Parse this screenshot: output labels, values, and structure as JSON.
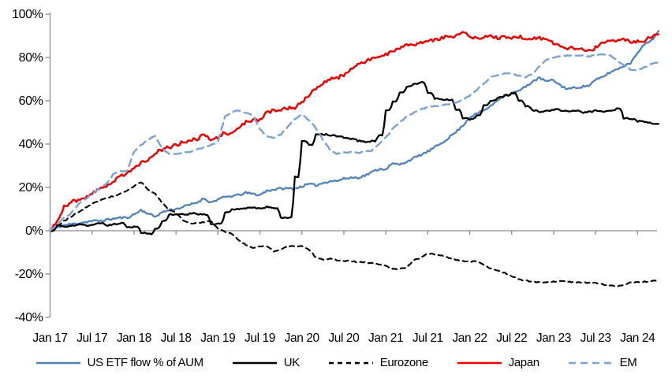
{
  "page": {
    "background": "#ffffff"
  },
  "chart_data": {
    "type": "line",
    "title": "",
    "x_tick_labels": [
      "Jan 17",
      "Jul 17",
      "Jan 18",
      "Jul 18",
      "Jan 19",
      "Jul 19",
      "Jan 20",
      "Jul 20",
      "Jan 21",
      "Jul 21",
      "Jan 22",
      "Jul 22",
      "Jan 23",
      "Jul 23",
      "Jan 24"
    ],
    "x_tick_month_indices": [
      0,
      6,
      12,
      18,
      24,
      30,
      36,
      42,
      48,
      54,
      60,
      66,
      72,
      78,
      84
    ],
    "y_tick_labels": [
      "100%",
      "80%",
      "60%",
      "40%",
      "20%",
      "0%",
      "-20%",
      "-40%"
    ],
    "y_tick_values": [
      100,
      80,
      60,
      40,
      20,
      0,
      -20,
      -40
    ],
    "ylim": [
      -40,
      100
    ],
    "x_months": {
      "start_label": "Jan 17",
      "end_label": "Apr 24",
      "count": 88
    },
    "axis_color": "#8c8c8c",
    "text_color": "#000000",
    "legend_position": "bottom",
    "series": [
      {
        "name": "US ETF flow % of AUM",
        "color": "#4f81bd",
        "dash": "solid",
        "width": 2.3,
        "noise": 0.5,
        "interp": "linear",
        "values": [
          0,
          1.5,
          2.5,
          3,
          3.5,
          4,
          4.5,
          4.5,
          5,
          5.5,
          6,
          6,
          7.5,
          9.5,
          8,
          6.5,
          8.5,
          9.5,
          10,
          11,
          12,
          13,
          15,
          13,
          14.5,
          15.5,
          16,
          16.5,
          17.5,
          17,
          16.5,
          18.5,
          19,
          19.5,
          19.5,
          19.5,
          20.5,
          21.5,
          21,
          22,
          23,
          23,
          24,
          24.5,
          24.5,
          25.5,
          27,
          28.5,
          28.5,
          31,
          30.5,
          32,
          33.5,
          35,
          36.5,
          38.5,
          40.5,
          43,
          45.5,
          48.5,
          52.5,
          54,
          55.5,
          57.5,
          60.5,
          62.5,
          63.5,
          64.5,
          66.5,
          69,
          70.5,
          69,
          69.5,
          67,
          65.5,
          66,
          66.5,
          67,
          69.5,
          71,
          73,
          74.5,
          76,
          77.5,
          82.5,
          86,
          88,
          92
        ]
      },
      {
        "name": "UK",
        "color": "#000000",
        "dash": "solid",
        "width": 2.3,
        "noise": 0.3,
        "interp": "step",
        "values": [
          0,
          2.5,
          2,
          2.5,
          3,
          2.5,
          3,
          3.5,
          2.5,
          3,
          3.5,
          1.5,
          2,
          -1,
          -1.5,
          1,
          4.5,
          7.5,
          7.5,
          7.5,
          8,
          7.5,
          7.5,
          3,
          3.5,
          8.5,
          10,
          10,
          10.5,
          10.5,
          10.5,
          11,
          10.5,
          6,
          6,
          25,
          41.5,
          39.5,
          44.5,
          44.5,
          44,
          43.5,
          43,
          42.5,
          41.5,
          41,
          41.5,
          44,
          55.5,
          59.5,
          64,
          66.5,
          68,
          68.5,
          63.5,
          61,
          60.5,
          60.5,
          56,
          52,
          51.5,
          53.5,
          58,
          60,
          61.5,
          62.5,
          63.5,
          60,
          57.5,
          55.5,
          55,
          55.5,
          56,
          55.5,
          55,
          55.5,
          54.5,
          55,
          55.5,
          55,
          55.5,
          56.5,
          52,
          51.5,
          50.5,
          50,
          49.5,
          49.5
        ]
      },
      {
        "name": "Eurozone",
        "color": "#000000",
        "dash": "6 5",
        "width": 2.1,
        "noise": 0.25,
        "interp": "linear",
        "values": [
          0,
          2,
          4.5,
          6.5,
          8.5,
          10.5,
          12.5,
          14,
          15,
          16,
          17,
          18.5,
          20.5,
          22.5,
          19,
          17,
          13,
          9.5,
          8.5,
          5,
          3.5,
          3.5,
          4,
          4.5,
          1,
          -0.5,
          -1.5,
          -4.5,
          -6.5,
          -8,
          -7.2,
          -7,
          -9.5,
          -8.5,
          -7,
          -7.2,
          -7.2,
          -8.5,
          -12.3,
          -13.4,
          -13,
          -13.5,
          -14,
          -14,
          -14.5,
          -14.5,
          -15,
          -15.5,
          -16.2,
          -17.5,
          -17.7,
          -17,
          -13.5,
          -12.5,
          -10.5,
          -11,
          -11.6,
          -12.5,
          -13.4,
          -14,
          -14.4,
          -13.8,
          -15.5,
          -17.6,
          -18.5,
          -19.4,
          -21,
          -22.4,
          -23,
          -23.5,
          -24,
          -23.8,
          -23.5,
          -23.3,
          -23.5,
          -23.8,
          -24,
          -24,
          -24.2,
          -24.8,
          -25.3,
          -25.8,
          -25,
          -24,
          -23.8,
          -23.5,
          -23.2,
          -23
        ]
      },
      {
        "name": "Japan",
        "color": "#ee0000",
        "dash": "solid",
        "width": 2.5,
        "noise": 0.8,
        "interp": "linear",
        "values": [
          0,
          4,
          11,
          13.5,
          14,
          15.5,
          17,
          19,
          20.5,
          23,
          25,
          27,
          29,
          31.5,
          33,
          36,
          37.5,
          38.5,
          39.5,
          41,
          41.5,
          42.5,
          44,
          42.5,
          43,
          45.5,
          44.5,
          48,
          50,
          51,
          51.5,
          54.5,
          55.5,
          56,
          56.5,
          57,
          59.5,
          62.5,
          65.5,
          68,
          70,
          70.5,
          72,
          75,
          76.5,
          78,
          79.5,
          80.5,
          81.5,
          83,
          84.5,
          85.5,
          86,
          86.5,
          87.5,
          88,
          89,
          90,
          90,
          91.5,
          90,
          89,
          89.5,
          90,
          89,
          89.5,
          89,
          89.5,
          89,
          88.5,
          89,
          88,
          86.5,
          85.5,
          84.5,
          84,
          83.5,
          83,
          84.5,
          86.5,
          87.5,
          88,
          88.5,
          87,
          87.5,
          88,
          89.5,
          90.5
        ]
      },
      {
        "name": "EM",
        "color": "#7ca1d4",
        "dash": "9 6",
        "width": 2.4,
        "noise": 0.25,
        "interp": "linear",
        "values": [
          0,
          3,
          6,
          8,
          12,
          14.5,
          17,
          19.5,
          21.5,
          26,
          27.5,
          27.5,
          36.5,
          39.5,
          42,
          44,
          38,
          35.5,
          35.5,
          36,
          36.5,
          37.5,
          38.5,
          39.5,
          41,
          52.5,
          55,
          55.5,
          54.5,
          53.5,
          47,
          43.5,
          43,
          44.5,
          48,
          51.5,
          53.8,
          51,
          47.5,
          42,
          37.5,
          35.5,
          36,
          36.5,
          36,
          36.5,
          37,
          40,
          43,
          47,
          50,
          52.7,
          54.5,
          56,
          57,
          57.5,
          58,
          58.5,
          59,
          60.5,
          62.5,
          65,
          68,
          70.8,
          72,
          72.6,
          72.5,
          71.5,
          71,
          72.5,
          76,
          79,
          80,
          80.5,
          81,
          81,
          81,
          80.5,
          81,
          81.5,
          81,
          79,
          76.5,
          74.5,
          74,
          75.5,
          77,
          78
        ]
      }
    ]
  }
}
